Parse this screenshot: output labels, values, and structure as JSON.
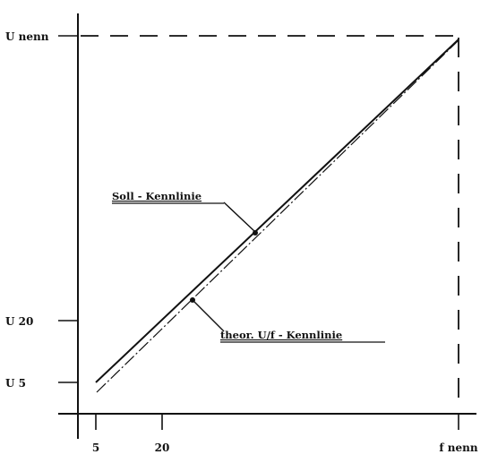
{
  "chart_data": {
    "type": "line",
    "y_tick_labels": [
      "U nenn",
      "U 20",
      "U 5"
    ],
    "x_tick_labels": [
      "5",
      "20",
      "f nenn"
    ],
    "series": [
      {
        "name": "Soll - Kennlinie",
        "style": "solid",
        "points": [
          [
            "5",
            "U 5"
          ],
          [
            "f nenn",
            "U nenn"
          ]
        ]
      },
      {
        "name": "theor. U/f - Kennlinie",
        "style": "dash-dot",
        "points": [
          [
            "0",
            "0"
          ],
          [
            "f nenn",
            "U nenn"
          ]
        ]
      }
    ],
    "reference_lines": [
      "dashed horizontal at U nenn",
      "dashed vertical at f nenn"
    ],
    "annotations": [
      {
        "text": "Soll - Kennlinie",
        "target": "Soll - Kennlinie",
        "underlined": true
      },
      {
        "text": "theor. U/f - Kennlinie",
        "target": "theor. U/f - Kennlinie",
        "underlined": true
      }
    ],
    "grid": false,
    "legend": "none"
  },
  "colors": {
    "line": "#111111",
    "background": "#ffffff"
  }
}
